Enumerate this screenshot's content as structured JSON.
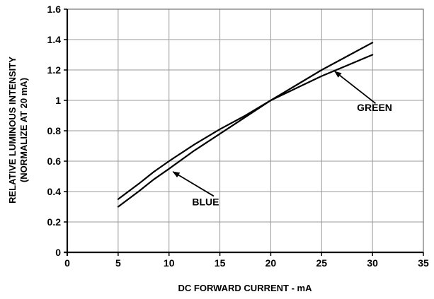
{
  "chart_data": {
    "type": "line",
    "xlabel": "DC FORWARD CURRENT - mA",
    "ylabel_line1": "RELATIVE LUMINOUS INTENSITY",
    "ylabel_line2": "(NORMALIZE AT 20 mA)",
    "xlim": [
      0,
      35
    ],
    "ylim": [
      0,
      1.6
    ],
    "xticks": [
      0,
      5,
      10,
      15,
      20,
      25,
      30,
      35
    ],
    "yticks": [
      0,
      0.2,
      0.4,
      0.6,
      0.8,
      1,
      1.2,
      1.4,
      1.6
    ],
    "ytick_labels": [
      "0",
      "0.2",
      "0.4",
      "0.6",
      "0.8",
      "1",
      "1.2",
      "1.4",
      "1.6"
    ],
    "grid": true,
    "series": [
      {
        "name": "BLUE",
        "x": [
          5,
          7,
          8.5,
          10,
          12.5,
          15,
          17.5,
          20,
          22.5,
          25,
          27.5,
          30
        ],
        "y": [
          0.3,
          0.4,
          0.48,
          0.55,
          0.67,
          0.78,
          0.89,
          1.0,
          1.1,
          1.2,
          1.29,
          1.38
        ]
      },
      {
        "name": "GREEN",
        "x": [
          5,
          7,
          8.5,
          10,
          12.5,
          15,
          17.5,
          20,
          22.5,
          25,
          27.5,
          30
        ],
        "y": [
          0.35,
          0.45,
          0.53,
          0.6,
          0.71,
          0.81,
          0.9,
          1.0,
          1.08,
          1.16,
          1.23,
          1.3
        ]
      }
    ],
    "annotations": [
      {
        "text": "BLUE",
        "series": "BLUE",
        "label_x": 13.6,
        "label_y": 0.31,
        "arrow_from": [
          14.4,
          0.37
        ],
        "arrow_to": [
          10.4,
          0.53
        ]
      },
      {
        "text": "GREEN",
        "series": "GREEN",
        "label_x": 30.2,
        "label_y": 0.93,
        "arrow_from": [
          30.3,
          0.98
        ],
        "arrow_to": [
          26.3,
          1.19
        ]
      }
    ],
    "colors": {
      "line": "#000000",
      "grid": "#9a9a9a",
      "axis": "#000000"
    }
  }
}
